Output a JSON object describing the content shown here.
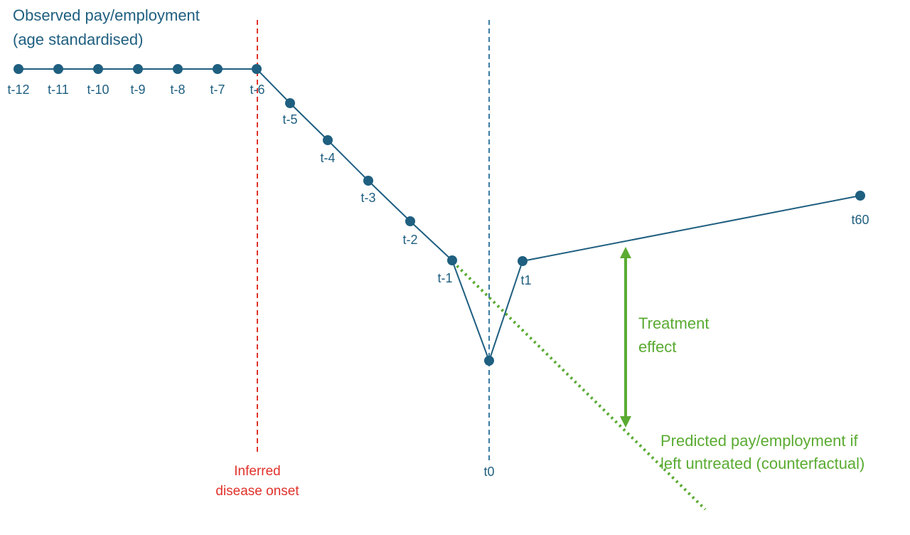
{
  "title": {
    "line1": "Observed pay/employment",
    "line2": "(age standardised)"
  },
  "points": [
    {
      "name": "t-12",
      "label": "t-12"
    },
    {
      "name": "t-11",
      "label": "t-11"
    },
    {
      "name": "t-10",
      "label": "t-10"
    },
    {
      "name": "t-9",
      "label": "t-9"
    },
    {
      "name": "t-8",
      "label": "t-8"
    },
    {
      "name": "t-7",
      "label": "t-7"
    },
    {
      "name": "t-6",
      "label": "t-6"
    },
    {
      "name": "t-5",
      "label": "t-5"
    },
    {
      "name": "t-4",
      "label": "t-4"
    },
    {
      "name": "t-3",
      "label": "t-3"
    },
    {
      "name": "t-2",
      "label": "t-2"
    },
    {
      "name": "t-1",
      "label": "t-1"
    },
    {
      "name": "t0",
      "label": ""
    },
    {
      "name": "t1",
      "label": "t1"
    },
    {
      "name": "t60",
      "label": "t60"
    }
  ],
  "onset": {
    "line1": "Inferred",
    "line2": "disease onset"
  },
  "t0_label": "t0",
  "treatment_effect": {
    "line1": "Treatment",
    "line2": "effect"
  },
  "counterfactual": {
    "line1": "Predicted pay/employment if",
    "line2": "left untreated (counterfactual)"
  },
  "colors": {
    "observed": "#1f5f80",
    "onset": "#e0322b",
    "t0_line": "#3b7ca3",
    "counterfactual": "#5aab32"
  }
}
